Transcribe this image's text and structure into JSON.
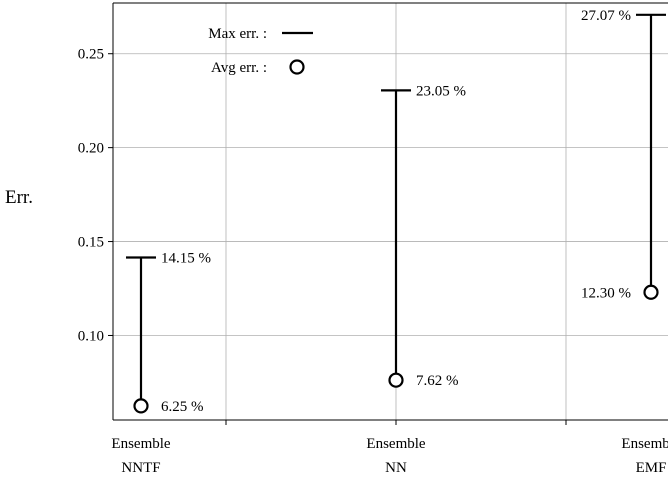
{
  "chart_data": {
    "type": "errorbar",
    "title": "",
    "xlabel": "",
    "ylabel": "Err.",
    "categories": [
      {
        "line1": "Ensemble",
        "line2": "NNTF"
      },
      {
        "line1": "Ensemble",
        "line2": "NN"
      },
      {
        "line1": "Ensemble",
        "line2": "EMF"
      }
    ],
    "series": [
      {
        "name": "Max err. :",
        "marker": "line",
        "values": [
          0.1415,
          0.2305,
          0.2707
        ],
        "labels": [
          "14.15 %",
          "23.05 %",
          "27.07 %"
        ]
      },
      {
        "name": "Avg err. :",
        "marker": "circle",
        "values": [
          0.0625,
          0.0762,
          0.123
        ],
        "labels": [
          "6.25 %",
          "7.62 %",
          "12.30 %"
        ]
      }
    ],
    "ylim": [
      0.055,
      0.277
    ],
    "yticks": [
      0.1,
      0.15,
      0.2,
      0.25
    ],
    "ytick_labels": [
      "0.10",
      "0.15",
      "0.20",
      "0.25"
    ],
    "grid": true,
    "legend_position": "top-left",
    "colors": {
      "line": "#000000",
      "grid": "#b0b0b0",
      "background": "#ffffff"
    }
  }
}
